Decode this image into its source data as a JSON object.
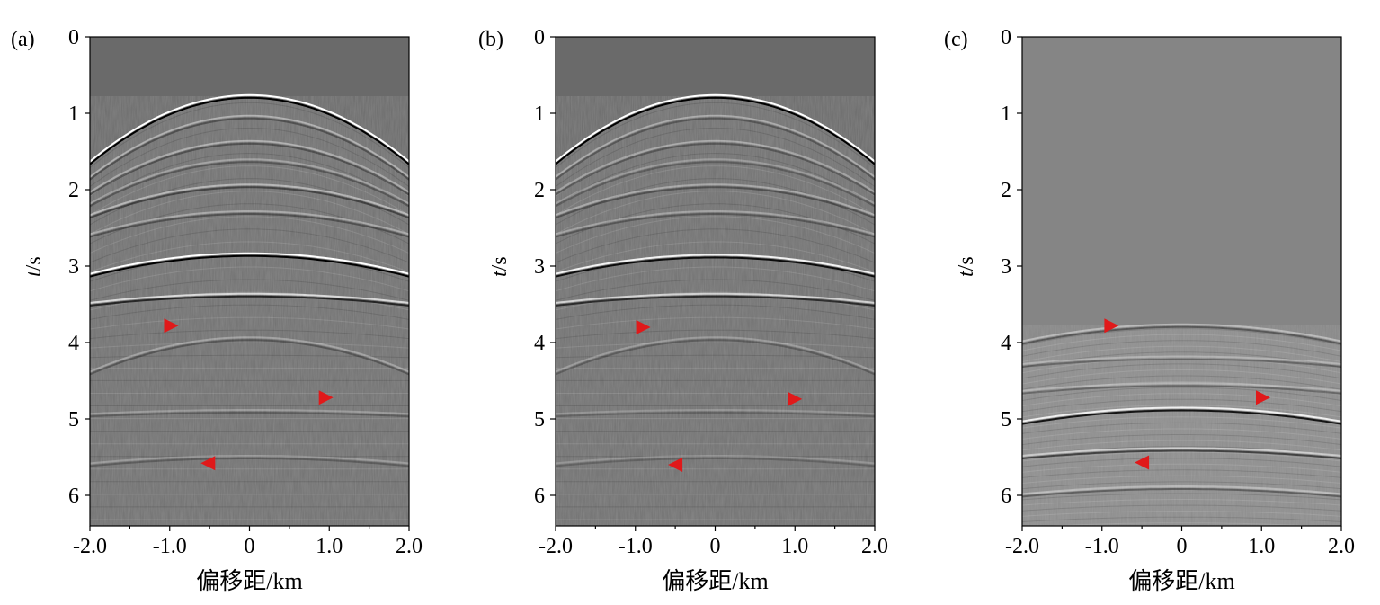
{
  "chart_data": [
    {
      "type": "heatmap",
      "panel_label": "(a)",
      "xlabel": "偏移距/km",
      "ylabel_italic": "t",
      "ylabel_rest": "/s",
      "xlim": [
        -2.0,
        2.0
      ],
      "ylim": [
        0,
        6.4
      ],
      "x_ticks": [
        -2.0,
        -1.0,
        0,
        1.0,
        2.0
      ],
      "x_tick_labels": [
        "-2.0",
        "-1.0",
        "0",
        "1.0",
        "2.0"
      ],
      "y_ticks": [
        0,
        1,
        2,
        3,
        4,
        5,
        6
      ],
      "y_tick_labels": [
        "0",
        "1",
        "2",
        "3",
        "4",
        "5",
        "6"
      ],
      "colormap": "gray",
      "events": [
        {
          "apex_t": 0.78,
          "edge_t": 1.65,
          "strength": 1.0
        },
        {
          "apex_t": 1.05,
          "edge_t": 1.85,
          "strength": 0.35
        },
        {
          "apex_t": 1.38,
          "edge_t": 2.05,
          "strength": 0.35
        },
        {
          "apex_t": 1.62,
          "edge_t": 2.2,
          "strength": 0.3
        },
        {
          "apex_t": 1.95,
          "edge_t": 2.35,
          "strength": 0.45
        },
        {
          "apex_t": 2.3,
          "edge_t": 2.6,
          "strength": 0.35
        },
        {
          "apex_t": 2.85,
          "edge_t": 3.12,
          "strength": 1.0
        },
        {
          "apex_t": 3.38,
          "edge_t": 3.5,
          "strength": 0.7
        },
        {
          "apex_t": 3.95,
          "edge_t": 4.4,
          "strength": 0.3
        },
        {
          "apex_t": 4.9,
          "edge_t": 4.95,
          "strength": 0.25
        },
        {
          "apex_t": 5.5,
          "edge_t": 5.6,
          "strength": 0.25
        }
      ],
      "markers": [
        {
          "x": -0.98,
          "t": 3.78,
          "direction": "right"
        },
        {
          "x": 0.96,
          "t": 4.72,
          "direction": "right"
        },
        {
          "x": -0.52,
          "t": 5.58,
          "direction": "left"
        }
      ]
    },
    {
      "type": "heatmap",
      "panel_label": "(b)",
      "xlabel": "偏移距/km",
      "ylabel_italic": "t",
      "ylabel_rest": "/s",
      "xlim": [
        -2.0,
        2.0
      ],
      "ylim": [
        0,
        6.4
      ],
      "x_ticks": [
        -2.0,
        -1.0,
        0,
        1.0,
        2.0
      ],
      "x_tick_labels": [
        "-2.0",
        "-1.0",
        "0",
        "1.0",
        "2.0"
      ],
      "y_ticks": [
        0,
        1,
        2,
        3,
        4,
        5,
        6
      ],
      "y_tick_labels": [
        "0",
        "1",
        "2",
        "3",
        "4",
        "5",
        "6"
      ],
      "colormap": "gray",
      "events": [
        {
          "apex_t": 0.78,
          "edge_t": 1.65,
          "strength": 1.0
        },
        {
          "apex_t": 1.05,
          "edge_t": 1.85,
          "strength": 0.3
        },
        {
          "apex_t": 1.38,
          "edge_t": 2.05,
          "strength": 0.3
        },
        {
          "apex_t": 1.62,
          "edge_t": 2.2,
          "strength": 0.25
        },
        {
          "apex_t": 1.95,
          "edge_t": 2.35,
          "strength": 0.35
        },
        {
          "apex_t": 2.3,
          "edge_t": 2.6,
          "strength": 0.3
        },
        {
          "apex_t": 2.87,
          "edge_t": 3.12,
          "strength": 0.9
        },
        {
          "apex_t": 3.38,
          "edge_t": 3.5,
          "strength": 0.65
        },
        {
          "apex_t": 3.95,
          "edge_t": 4.4,
          "strength": 0.25
        },
        {
          "apex_t": 4.9,
          "edge_t": 4.95,
          "strength": 0.2
        },
        {
          "apex_t": 5.5,
          "edge_t": 5.6,
          "strength": 0.2
        }
      ],
      "markers": [
        {
          "x": -0.9,
          "t": 3.8,
          "direction": "right"
        },
        {
          "x": 1.0,
          "t": 4.74,
          "direction": "right"
        },
        {
          "x": -0.5,
          "t": 5.6,
          "direction": "left"
        }
      ]
    },
    {
      "type": "heatmap",
      "panel_label": "(c)",
      "xlabel": "偏移距/km",
      "ylabel_italic": "t",
      "ylabel_rest": "/s",
      "xlim": [
        -2.0,
        2.0
      ],
      "ylim": [
        0,
        6.4
      ],
      "x_ticks": [
        -2.0,
        -1.0,
        0,
        1.0,
        2.0
      ],
      "x_tick_labels": [
        "-2.0",
        "-1.0",
        "0",
        "1.0",
        "2.0"
      ],
      "y_ticks": [
        0,
        1,
        2,
        3,
        4,
        5,
        6
      ],
      "y_tick_labels": [
        "0",
        "1",
        "2",
        "3",
        "4",
        "5",
        "6"
      ],
      "colormap": "gray",
      "events": [
        {
          "apex_t": 3.78,
          "edge_t": 4.0,
          "strength": 0.4
        },
        {
          "apex_t": 4.2,
          "edge_t": 4.3,
          "strength": 0.3
        },
        {
          "apex_t": 4.55,
          "edge_t": 4.65,
          "strength": 0.3
        },
        {
          "apex_t": 4.87,
          "edge_t": 5.05,
          "strength": 0.85
        },
        {
          "apex_t": 5.4,
          "edge_t": 5.5,
          "strength": 0.55
        },
        {
          "apex_t": 5.9,
          "edge_t": 6.0,
          "strength": 0.35
        }
      ],
      "markers": [
        {
          "x": -0.88,
          "t": 3.78,
          "direction": "right"
        },
        {
          "x": 1.02,
          "t": 4.72,
          "direction": "right"
        },
        {
          "x": -0.5,
          "t": 5.57,
          "direction": "left"
        }
      ]
    }
  ],
  "colors": {
    "background_dark": "#6a6a6a",
    "background_light": "#858585",
    "marker": "#e0191a"
  }
}
